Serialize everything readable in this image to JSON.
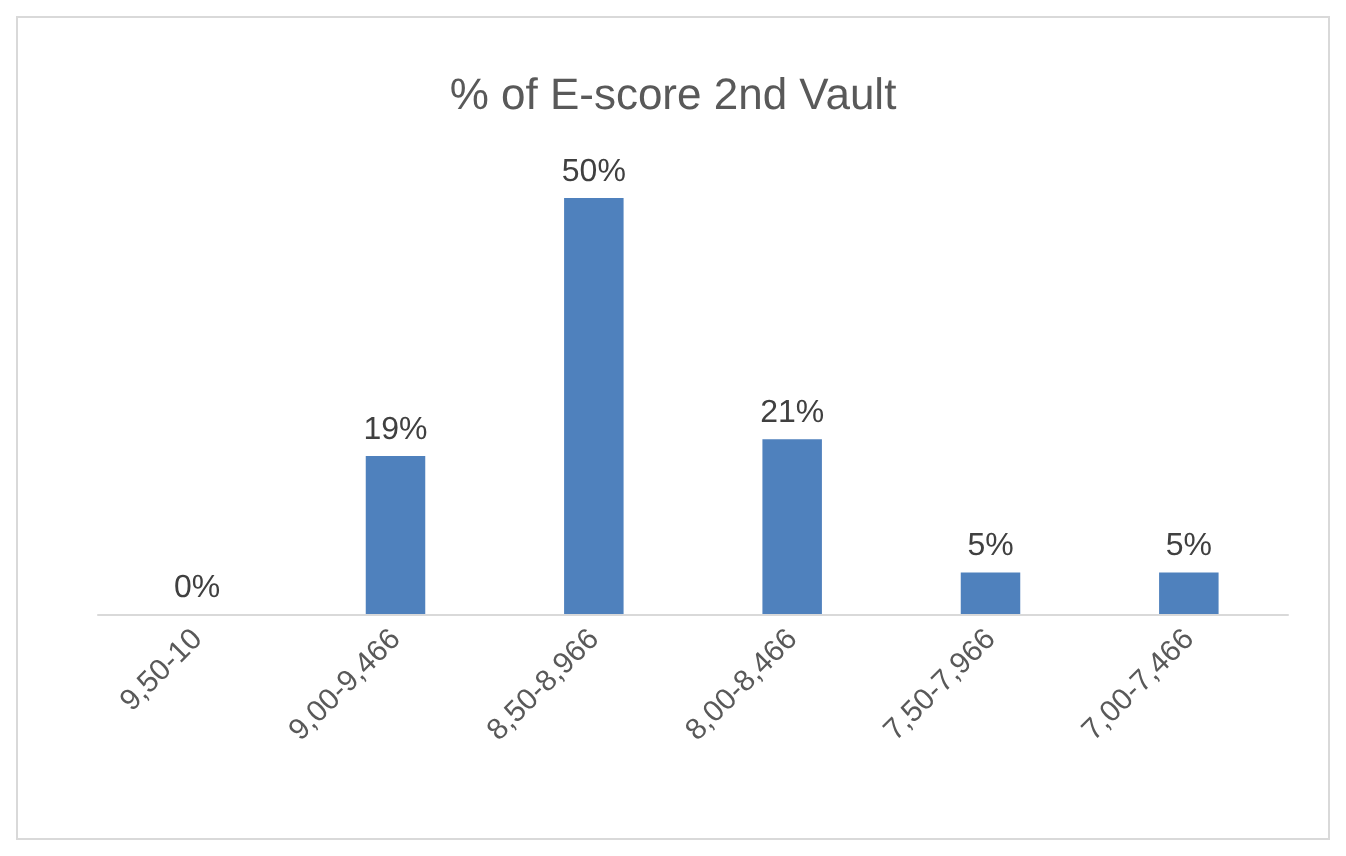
{
  "chart_data": {
    "type": "bar",
    "title": "% of E-score 2nd Vault",
    "categories": [
      "9,50-10",
      "9,00-9,466",
      "8,50-8,966",
      "8,00-8,466",
      "7,50-7,966",
      "7,00-7,466"
    ],
    "values": [
      0,
      19,
      50,
      21,
      5,
      5
    ],
    "value_labels": [
      "0%",
      "19%",
      "50%",
      "21%",
      "5%",
      "5%"
    ],
    "color": "#4f81bd"
  }
}
